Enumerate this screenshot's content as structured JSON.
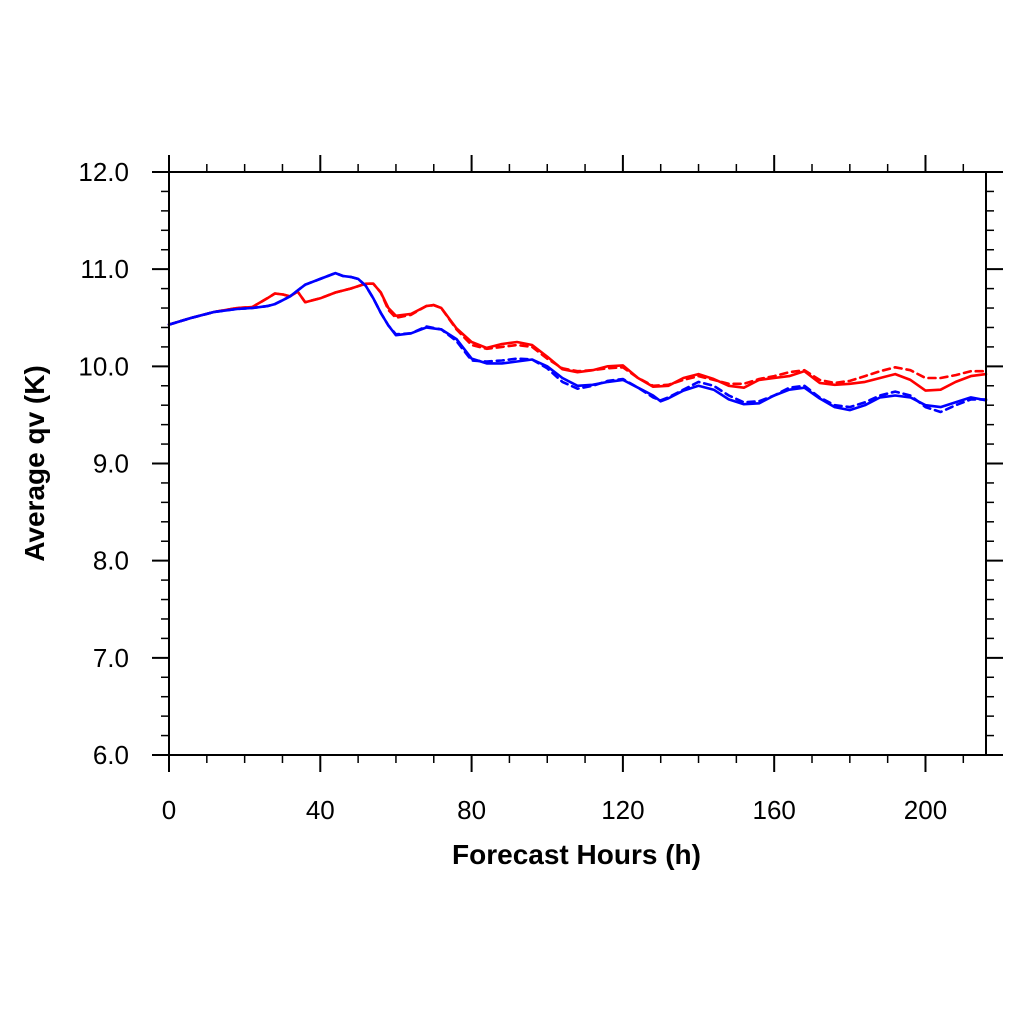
{
  "chart_data": {
    "type": "line",
    "xlabel": "Forecast Hours (h)",
    "ylabel": "Average qv (K)",
    "xlim": [
      0,
      216
    ],
    "ylim": [
      6.0,
      12.0
    ],
    "xticks": [
      0,
      40,
      80,
      120,
      160,
      200
    ],
    "xtick_labels": [
      "0",
      "40",
      "80",
      "120",
      "160",
      "200"
    ],
    "yticks": [
      6.0,
      7.0,
      8.0,
      9.0,
      10.0,
      11.0,
      12.0
    ],
    "ytick_labels": [
      "6.0",
      "7.0",
      "8.0",
      "9.0",
      "10.0",
      "11.0",
      "12.0"
    ],
    "grid": false,
    "legend": "none",
    "series": [
      {
        "color": "#ff0000",
        "dash": "solid",
        "x": [
          0,
          6,
          12,
          18,
          22,
          26,
          28,
          30,
          32,
          34,
          36,
          40,
          44,
          48,
          52,
          54,
          56,
          58,
          60,
          64,
          68,
          70,
          72,
          76,
          80,
          84,
          88,
          92,
          96,
          100,
          104,
          108,
          112,
          116,
          120,
          124,
          128,
          132,
          136,
          140,
          144,
          148,
          152,
          156,
          160,
          164,
          168,
          172,
          176,
          180,
          184,
          188,
          192,
          196,
          200,
          204,
          208,
          212,
          216
        ],
        "y": [
          10.43,
          10.5,
          10.56,
          10.6,
          10.61,
          10.7,
          10.75,
          10.74,
          10.72,
          10.77,
          10.66,
          10.7,
          10.76,
          10.8,
          10.85,
          10.85,
          10.76,
          10.6,
          10.52,
          10.54,
          10.62,
          10.63,
          10.6,
          10.39,
          10.25,
          10.19,
          10.23,
          10.25,
          10.22,
          10.1,
          9.97,
          9.94,
          9.96,
          10.0,
          10.01,
          9.88,
          9.79,
          9.8,
          9.88,
          9.92,
          9.87,
          9.8,
          9.78,
          9.86,
          9.88,
          9.9,
          9.95,
          9.83,
          9.81,
          9.82,
          9.84,
          9.88,
          9.92,
          9.86,
          9.75,
          9.76,
          9.84,
          9.9,
          9.92
        ]
      },
      {
        "color": "#ff0000",
        "dash": "dashed",
        "x": [
          0,
          6,
          12,
          18,
          22,
          26,
          28,
          30,
          32,
          34,
          36,
          40,
          44,
          48,
          52,
          54,
          56,
          58,
          60,
          64,
          68,
          70,
          72,
          76,
          80,
          84,
          88,
          92,
          96,
          100,
          104,
          108,
          112,
          116,
          120,
          124,
          128,
          132,
          136,
          140,
          144,
          148,
          152,
          156,
          160,
          164,
          168,
          172,
          176,
          180,
          184,
          188,
          192,
          196,
          200,
          204,
          208,
          212,
          216
        ],
        "y": [
          10.43,
          10.5,
          10.56,
          10.6,
          10.61,
          10.7,
          10.75,
          10.74,
          10.72,
          10.77,
          10.66,
          10.7,
          10.76,
          10.8,
          10.85,
          10.85,
          10.76,
          10.58,
          10.5,
          10.53,
          10.62,
          10.63,
          10.6,
          10.38,
          10.22,
          10.18,
          10.2,
          10.22,
          10.2,
          10.08,
          9.98,
          9.95,
          9.96,
          9.98,
          9.99,
          9.88,
          9.8,
          9.81,
          9.86,
          9.9,
          9.86,
          9.82,
          9.82,
          9.87,
          9.9,
          9.94,
          9.96,
          9.86,
          9.83,
          9.85,
          9.9,
          9.95,
          9.99,
          9.96,
          9.88,
          9.88,
          9.91,
          9.95,
          9.95
        ]
      },
      {
        "color": "#0000ff",
        "dash": "solid",
        "x": [
          0,
          6,
          12,
          18,
          22,
          26,
          28,
          30,
          32,
          34,
          36,
          40,
          44,
          46,
          48,
          50,
          52,
          54,
          56,
          58,
          60,
          64,
          68,
          72,
          76,
          80,
          84,
          88,
          92,
          96,
          100,
          104,
          108,
          112,
          116,
          120,
          124,
          128,
          130,
          132,
          136,
          140,
          144,
          148,
          152,
          156,
          160,
          164,
          168,
          172,
          176,
          180,
          184,
          188,
          192,
          196,
          200,
          204,
          208,
          212,
          216
        ],
        "y": [
          10.43,
          10.5,
          10.56,
          10.59,
          10.6,
          10.62,
          10.64,
          10.68,
          10.72,
          10.78,
          10.84,
          10.9,
          10.96,
          10.93,
          10.92,
          10.9,
          10.83,
          10.7,
          10.55,
          10.42,
          10.32,
          10.34,
          10.4,
          10.38,
          10.28,
          10.08,
          10.03,
          10.03,
          10.05,
          10.07,
          10.0,
          9.88,
          9.8,
          9.81,
          9.84,
          9.86,
          9.78,
          9.7,
          9.64,
          9.67,
          9.75,
          9.8,
          9.76,
          9.66,
          9.61,
          9.62,
          9.7,
          9.76,
          9.78,
          9.67,
          9.58,
          9.55,
          9.6,
          9.68,
          9.7,
          9.68,
          9.6,
          9.58,
          9.63,
          9.68,
          9.65
        ]
      },
      {
        "color": "#0000ff",
        "dash": "dashed",
        "x": [
          0,
          6,
          12,
          18,
          22,
          26,
          28,
          30,
          32,
          34,
          36,
          40,
          44,
          46,
          48,
          50,
          52,
          54,
          56,
          58,
          60,
          64,
          68,
          72,
          76,
          80,
          84,
          88,
          92,
          96,
          100,
          104,
          108,
          112,
          116,
          120,
          124,
          128,
          130,
          132,
          136,
          140,
          144,
          148,
          152,
          156,
          160,
          164,
          168,
          172,
          176,
          180,
          184,
          188,
          192,
          196,
          200,
          204,
          208,
          212,
          216
        ],
        "y": [
          10.43,
          10.5,
          10.56,
          10.59,
          10.6,
          10.62,
          10.64,
          10.68,
          10.72,
          10.78,
          10.84,
          10.9,
          10.96,
          10.93,
          10.92,
          10.9,
          10.83,
          10.7,
          10.55,
          10.42,
          10.33,
          10.34,
          10.41,
          10.38,
          10.26,
          10.06,
          10.05,
          10.06,
          10.08,
          10.07,
          9.98,
          9.84,
          9.77,
          9.8,
          9.85,
          9.87,
          9.78,
          9.68,
          9.65,
          9.68,
          9.76,
          9.84,
          9.8,
          9.7,
          9.63,
          9.64,
          9.7,
          9.78,
          9.8,
          9.68,
          9.6,
          9.58,
          9.63,
          9.7,
          9.74,
          9.7,
          9.58,
          9.53,
          9.6,
          9.66,
          9.66
        ]
      }
    ]
  }
}
